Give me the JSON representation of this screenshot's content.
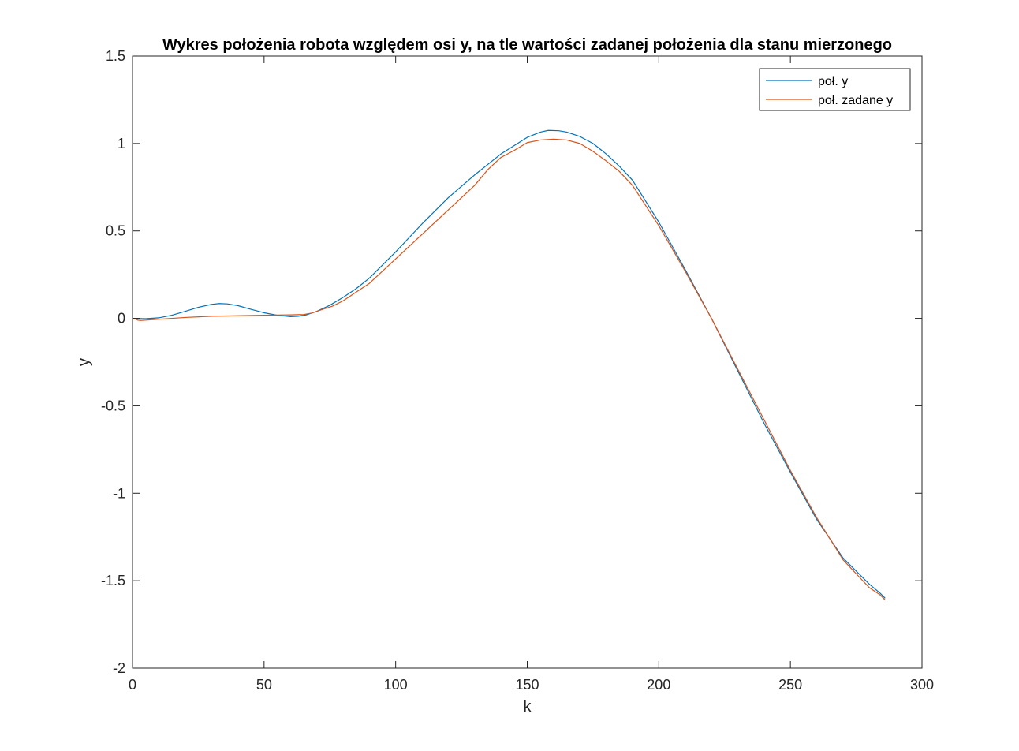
{
  "chart_data": {
    "type": "line",
    "title": "Wykres położenia robota względem osi y, na tle wartości zadanej położenia dla stanu mierzonego",
    "xlabel": "k",
    "ylabel": "y",
    "xlim": [
      0,
      300
    ],
    "ylim": [
      -2,
      1.5
    ],
    "xticks": [
      0,
      50,
      100,
      150,
      200,
      250,
      300
    ],
    "yticks": [
      -2,
      -1.5,
      -1,
      -0.5,
      0,
      0.5,
      1,
      1.5
    ],
    "xtick_labels": [
      "0",
      "50",
      "100",
      "150",
      "200",
      "250",
      "300"
    ],
    "ytick_labels": [
      "-2",
      "-1.5",
      "-1",
      "-0.5",
      "0",
      "0.5",
      "1",
      "1.5"
    ],
    "grid": false,
    "legend_position": "top-right",
    "series": [
      {
        "name": "poł. y",
        "color": "#0072BD",
        "x": [
          0,
          5,
          10,
          15,
          20,
          25,
          30,
          33,
          36,
          40,
          45,
          50,
          55,
          60,
          63,
          66,
          70,
          75,
          80,
          85,
          90,
          100,
          110,
          120,
          130,
          140,
          150,
          155,
          158,
          162,
          165,
          170,
          175,
          180,
          185,
          190,
          200,
          210,
          220,
          230,
          240,
          250,
          260,
          270,
          280,
          284,
          286
        ],
        "y": [
          0,
          -0.002,
          0.003,
          0.018,
          0.04,
          0.063,
          0.08,
          0.085,
          0.083,
          0.073,
          0.052,
          0.032,
          0.018,
          0.01,
          0.012,
          0.02,
          0.04,
          0.075,
          0.12,
          0.17,
          0.23,
          0.38,
          0.54,
          0.69,
          0.82,
          0.94,
          1.035,
          1.065,
          1.075,
          1.073,
          1.065,
          1.04,
          1.0,
          0.94,
          0.87,
          0.79,
          0.55,
          0.28,
          0.0,
          -0.3,
          -0.6,
          -0.88,
          -1.15,
          -1.37,
          -1.52,
          -1.57,
          -1.6
        ]
      },
      {
        "name": "poł. zadane y",
        "color": "#D95319",
        "x": [
          0,
          1,
          2,
          3,
          10,
          20,
          30,
          40,
          50,
          60,
          65,
          68,
          72,
          76,
          80,
          85,
          90,
          100,
          110,
          120,
          130,
          135,
          140,
          145,
          150,
          155,
          160,
          165,
          170,
          175,
          180,
          185,
          190,
          200,
          210,
          220,
          230,
          240,
          250,
          260,
          270,
          280,
          284,
          286
        ],
        "y": [
          0,
          -0.002,
          -0.01,
          -0.012,
          -0.005,
          0.005,
          0.012,
          0.015,
          0.018,
          0.02,
          0.022,
          0.03,
          0.05,
          0.07,
          0.1,
          0.15,
          0.2,
          0.34,
          0.48,
          0.62,
          0.76,
          0.85,
          0.92,
          0.96,
          1.005,
          1.02,
          1.025,
          1.02,
          1.0,
          0.955,
          0.9,
          0.84,
          0.76,
          0.53,
          0.27,
          0.0,
          -0.29,
          -0.58,
          -0.87,
          -1.14,
          -1.38,
          -1.54,
          -1.58,
          -1.61
        ]
      }
    ]
  }
}
